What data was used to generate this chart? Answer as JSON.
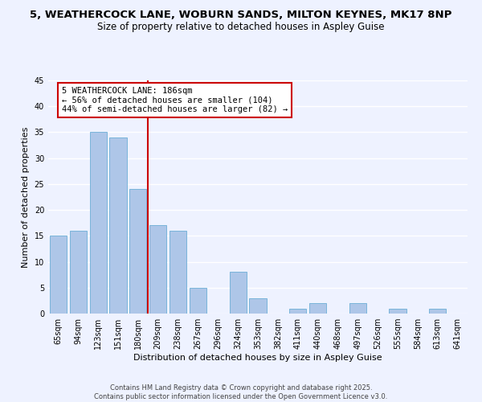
{
  "title_line1": "5, WEATHERCOCK LANE, WOBURN SANDS, MILTON KEYNES, MK17 8NP",
  "title_line2": "Size of property relative to detached houses in Aspley Guise",
  "xlabel": "Distribution of detached houses by size in Aspley Guise",
  "ylabel": "Number of detached properties",
  "categories": [
    "65sqm",
    "94sqm",
    "123sqm",
    "151sqm",
    "180sqm",
    "209sqm",
    "238sqm",
    "267sqm",
    "296sqm",
    "324sqm",
    "353sqm",
    "382sqm",
    "411sqm",
    "440sqm",
    "468sqm",
    "497sqm",
    "526sqm",
    "555sqm",
    "584sqm",
    "613sqm",
    "641sqm"
  ],
  "values": [
    15,
    16,
    35,
    34,
    24,
    17,
    16,
    5,
    0,
    8,
    3,
    0,
    1,
    2,
    0,
    2,
    0,
    1,
    0,
    1,
    0
  ],
  "bar_color": "#aec6e8",
  "bar_edge_color": "#6baed6",
  "vline_x": 4.5,
  "vline_color": "#cc0000",
  "annotation_box_text": "5 WEATHERCOCK LANE: 186sqm\n← 56% of detached houses are smaller (104)\n44% of semi-detached houses are larger (82) →",
  "ylim": [
    0,
    45
  ],
  "yticks": [
    0,
    5,
    10,
    15,
    20,
    25,
    30,
    35,
    40,
    45
  ],
  "background_color": "#eef2ff",
  "plot_bg_color": "#eef2ff",
  "grid_color": "#ffffff",
  "footer_line1": "Contains HM Land Registry data © Crown copyright and database right 2025.",
  "footer_line2": "Contains public sector information licensed under the Open Government Licence v3.0.",
  "title_fontsize": 9.5,
  "subtitle_fontsize": 8.5,
  "axis_label_fontsize": 8,
  "tick_fontsize": 7,
  "annotation_fontsize": 7.5,
  "footer_fontsize": 6
}
